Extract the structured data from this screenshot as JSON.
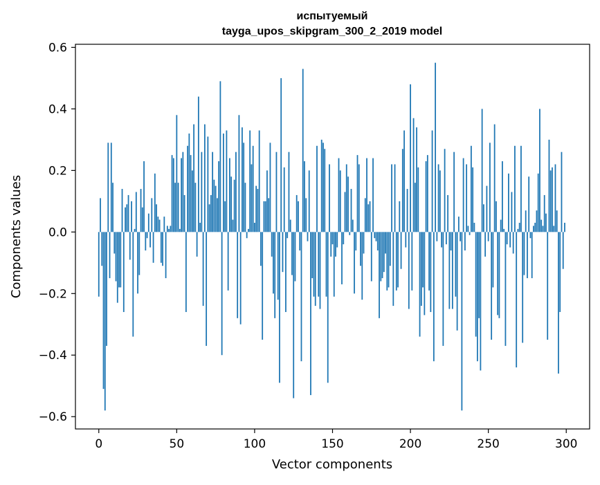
{
  "colors": {
    "bar": "#1f77b4",
    "axis": "#000000",
    "background": "#ffffff"
  },
  "chart_data": {
    "type": "bar",
    "title": "испытуемый\ntayga_upos_skipgram_300_2_2019 model",
    "title_lines": [
      "испытуемый",
      "tayga_upos_skipgram_300_2_2019 model"
    ],
    "xlabel": "Vector components",
    "ylabel": "Components values",
    "xlim": [
      -15,
      315
    ],
    "ylim": [
      -0.64,
      0.61
    ],
    "xticks": [
      0,
      50,
      100,
      150,
      200,
      250,
      300
    ],
    "xtick_labels": [
      "0",
      "50",
      "100",
      "150",
      "200",
      "250",
      "300"
    ],
    "yticks": [
      -0.6,
      -0.4,
      -0.2,
      0.0,
      0.2,
      0.4,
      0.6
    ],
    "ytick_labels": [
      "−0.6",
      "−0.4",
      "−0.2",
      "0.0",
      "0.2",
      "0.4",
      "0.6"
    ],
    "grid": false,
    "legend": "none",
    "x": "indices 0..299 (one bar per vector component)",
    "values": [
      -0.21,
      0.11,
      -0.11,
      -0.51,
      -0.58,
      -0.37,
      0.29,
      -0.15,
      0.29,
      0.16,
      -0.07,
      -0.16,
      -0.23,
      -0.18,
      -0.18,
      0.14,
      -0.26,
      0.08,
      0.09,
      0.12,
      -0.09,
      0.1,
      -0.34,
      0.01,
      0.13,
      -0.2,
      -0.14,
      0.14,
      0.08,
      0.23,
      -0.06,
      -0.02,
      0.06,
      -0.05,
      0.11,
      -0.1,
      0.19,
      0.09,
      0.05,
      0.04,
      -0.1,
      -0.11,
      0.05,
      -0.15,
      0.02,
      0.01,
      0.02,
      0.25,
      0.24,
      0.16,
      0.38,
      0.16,
      0.01,
      0.24,
      0.26,
      0.12,
      -0.26,
      0.28,
      0.32,
      0.25,
      0.2,
      0.35,
      0.16,
      -0.08,
      0.44,
      0.03,
      0.26,
      -0.24,
      0.35,
      -0.37,
      0.31,
      0.09,
      0.12,
      0.26,
      0.17,
      0.15,
      0.11,
      0.23,
      0.49,
      -0.4,
      0.32,
      0.1,
      0.33,
      -0.19,
      0.24,
      0.18,
      0.04,
      0.17,
      0.26,
      -0.28,
      0.38,
      -0.3,
      0.34,
      0.29,
      0.16,
      -0.02,
      0.01,
      0.33,
      0.22,
      0.28,
      0.03,
      0.15,
      0.14,
      0.33,
      -0.11,
      -0.35,
      0.1,
      0.1,
      0.2,
      0.11,
      0.29,
      -0.08,
      -0.2,
      -0.28,
      0.26,
      -0.22,
      -0.49,
      0.5,
      -0.13,
      0.21,
      -0.26,
      -0.02,
      0.26,
      0.04,
      -0.14,
      -0.54,
      -0.16,
      0.12,
      0.1,
      -0.06,
      -0.42,
      0.53,
      0.23,
      0.11,
      -0.03,
      0.2,
      -0.53,
      -0.15,
      -0.21,
      -0.24,
      0.28,
      -0.21,
      -0.25,
      0.3,
      0.29,
      0.27,
      -0.21,
      -0.49,
      0.22,
      -0.08,
      -0.04,
      -0.21,
      -0.08,
      -0.05,
      0.24,
      0.2,
      -0.17,
      -0.04,
      0.13,
      0.22,
      0.18,
      -0.01,
      0.14,
      0.04,
      -0.2,
      -0.06,
      0.25,
      0.22,
      -0.11,
      -0.22,
      -0.07,
      0.11,
      0.24,
      0.09,
      0.1,
      -0.16,
      0.24,
      -0.02,
      -0.03,
      -0.06,
      -0.28,
      -0.16,
      -0.15,
      -0.13,
      -0.07,
      -0.19,
      -0.18,
      -0.11,
      0.22,
      -0.24,
      0.22,
      -0.19,
      -0.18,
      0.1,
      -0.12,
      0.27,
      0.33,
      -0.05,
      0.14,
      -0.25,
      0.48,
      -0.19,
      0.37,
      0.16,
      0.34,
      0.21,
      -0.34,
      -0.24,
      -0.18,
      -0.27,
      0.23,
      0.25,
      -0.19,
      -0.26,
      0.33,
      -0.42,
      0.55,
      -0.03,
      0.22,
      0.2,
      -0.05,
      -0.37,
      0.27,
      -0.04,
      0.12,
      -0.25,
      -0.06,
      -0.25,
      0.26,
      -0.21,
      -0.32,
      0.05,
      -0.03,
      -0.58,
      0.24,
      -0.06,
      0.22,
      0.02,
      -0.01,
      0.28,
      0.21,
      0.03,
      -0.34,
      -0.42,
      -0.28,
      -0.45,
      0.4,
      0.09,
      -0.08,
      0.15,
      -0.03,
      0.29,
      -0.35,
      -0.18,
      0.35,
      0.1,
      -0.27,
      -0.28,
      0.04,
      0.23,
      0.01,
      -0.37,
      -0.04,
      0.19,
      -0.05,
      0.13,
      -0.07,
      0.28,
      -0.44,
      0.01,
      0.03,
      0.28,
      -0.36,
      -0.14,
      0.07,
      -0.15,
      0.18,
      -0.02,
      -0.15,
      0.02,
      0.03,
      0.07,
      0.19,
      0.4,
      0.04,
      0.02,
      0.12,
      0.06,
      -0.35,
      0.3,
      0.2,
      0.21,
      0.02,
      0.22,
      0.07,
      -0.46,
      -0.26,
      0.26,
      -0.12,
      0.03
    ]
  }
}
